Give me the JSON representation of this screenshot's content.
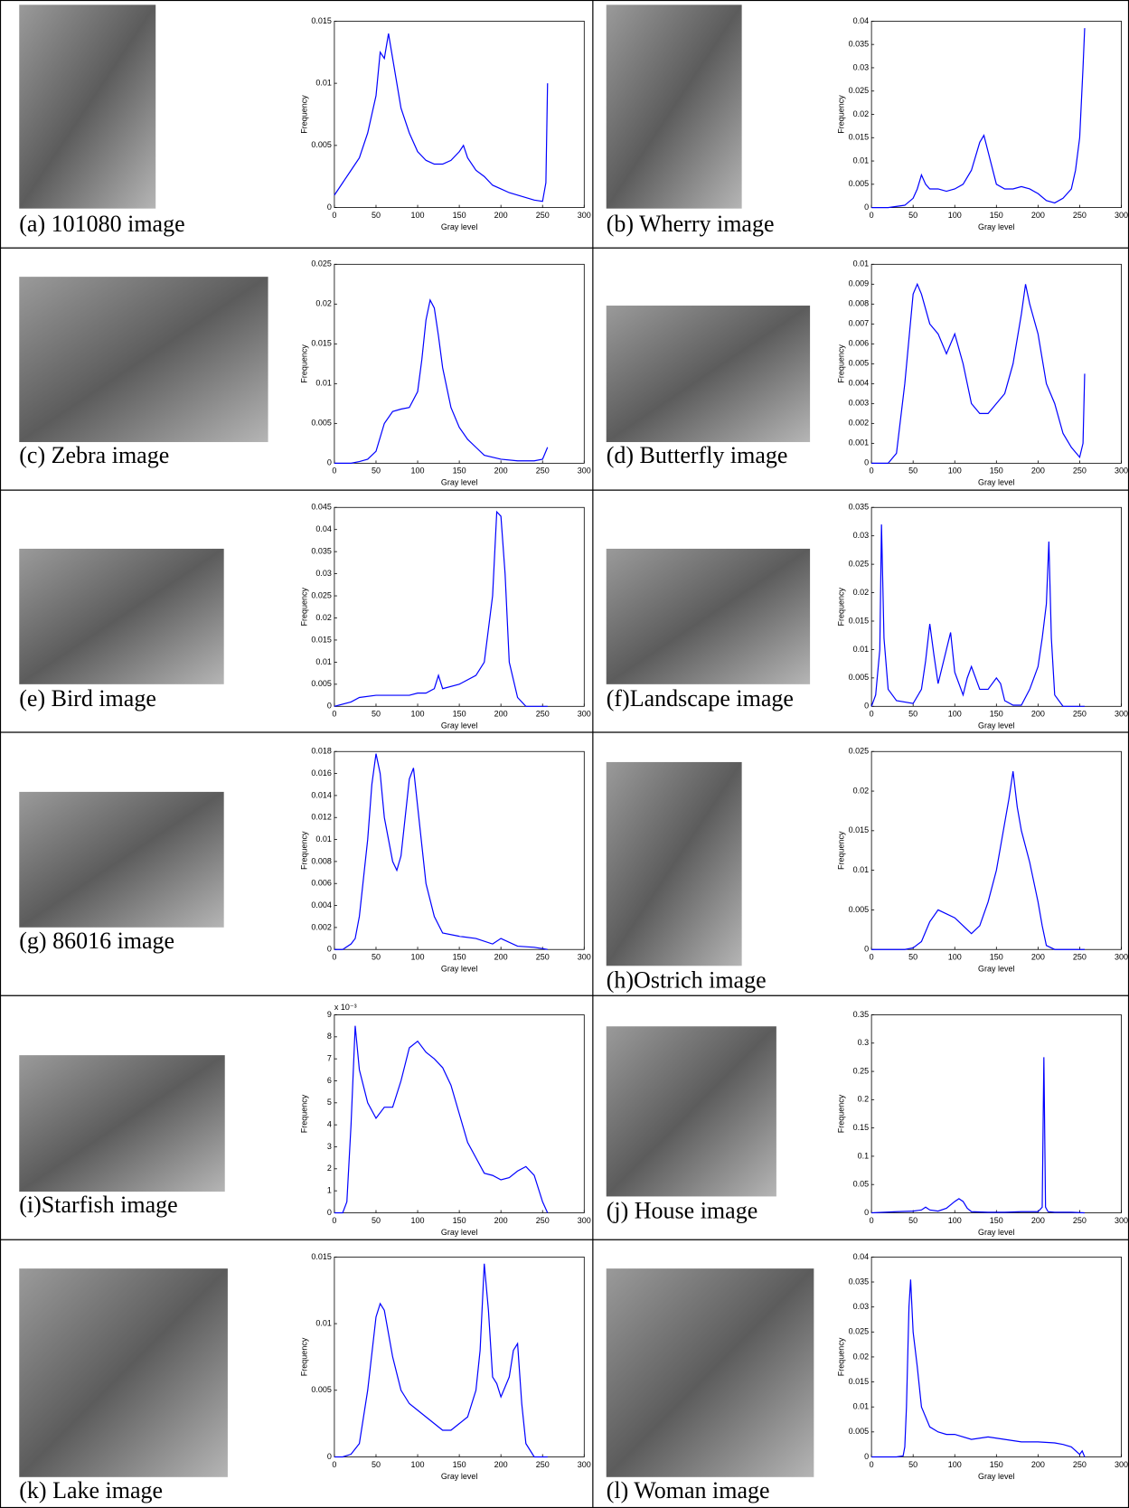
{
  "chart_data": [
    {
      "type": "line",
      "caption": "(a) 101080 image",
      "xlabel": "Gray level",
      "ylabel": "Frequency",
      "xlim": [
        0,
        300
      ],
      "xticks": [
        0,
        50,
        100,
        150,
        200,
        250,
        300
      ],
      "ylim": [
        0,
        0.015
      ],
      "yticks": [
        0,
        0.005,
        0.01,
        0.015
      ],
      "color": "#0000ff",
      "x": [
        0,
        10,
        20,
        30,
        40,
        50,
        55,
        60,
        65,
        70,
        80,
        90,
        100,
        110,
        120,
        130,
        140,
        150,
        155,
        160,
        170,
        180,
        190,
        200,
        210,
        220,
        230,
        240,
        250,
        254,
        256
      ],
      "values": [
        0.001,
        0.002,
        0.003,
        0.004,
        0.006,
        0.009,
        0.0125,
        0.012,
        0.014,
        0.012,
        0.008,
        0.006,
        0.0045,
        0.0038,
        0.0035,
        0.0035,
        0.0038,
        0.0045,
        0.005,
        0.004,
        0.003,
        0.0025,
        0.0018,
        0.0015,
        0.0012,
        0.001,
        0.0008,
        0.0006,
        0.0005,
        0.002,
        0.01
      ]
    },
    {
      "type": "line",
      "caption": "(b) Wherry image",
      "xlabel": "Gray level",
      "ylabel": "Frequency",
      "xlim": [
        0,
        300
      ],
      "xticks": [
        0,
        50,
        100,
        150,
        200,
        250,
        300
      ],
      "ylim": [
        0,
        0.04
      ],
      "yticks": [
        0,
        0.005,
        0.01,
        0.015,
        0.02,
        0.025,
        0.03,
        0.035,
        0.04
      ],
      "color": "#0000ff",
      "x": [
        0,
        20,
        40,
        50,
        55,
        60,
        65,
        70,
        80,
        90,
        100,
        110,
        120,
        130,
        135,
        140,
        150,
        160,
        170,
        180,
        190,
        200,
        210,
        220,
        230,
        240,
        245,
        250,
        254,
        256
      ],
      "values": [
        0,
        0,
        0.0005,
        0.002,
        0.004,
        0.007,
        0.005,
        0.004,
        0.004,
        0.0035,
        0.004,
        0.005,
        0.008,
        0.014,
        0.0155,
        0.012,
        0.005,
        0.004,
        0.004,
        0.0045,
        0.004,
        0.003,
        0.0015,
        0.001,
        0.002,
        0.004,
        0.008,
        0.015,
        0.03,
        0.0385
      ]
    },
    {
      "type": "line",
      "caption": "(c) Zebra image",
      "xlabel": "Gray level",
      "ylabel": "Frequency",
      "xlim": [
        0,
        300
      ],
      "xticks": [
        0,
        50,
        100,
        150,
        200,
        250,
        300
      ],
      "ylim": [
        0,
        0.025
      ],
      "yticks": [
        0,
        0.005,
        0.01,
        0.015,
        0.02,
        0.025
      ],
      "color": "#0000ff",
      "x": [
        0,
        20,
        30,
        40,
        50,
        60,
        70,
        80,
        90,
        100,
        105,
        110,
        115,
        120,
        125,
        130,
        140,
        150,
        160,
        170,
        180,
        200,
        220,
        240,
        250,
        256
      ],
      "values": [
        0,
        0,
        0.0002,
        0.0005,
        0.0015,
        0.005,
        0.0065,
        0.0068,
        0.007,
        0.009,
        0.013,
        0.018,
        0.0205,
        0.0195,
        0.016,
        0.012,
        0.007,
        0.0045,
        0.003,
        0.002,
        0.001,
        0.0005,
        0.0003,
        0.0003,
        0.0005,
        0.002
      ]
    },
    {
      "type": "line",
      "caption": "(d) Butterfly image",
      "xlabel": "Gray level",
      "ylabel": "Frequency",
      "xlim": [
        0,
        300
      ],
      "xticks": [
        0,
        50,
        100,
        150,
        200,
        250,
        300
      ],
      "ylim": [
        0,
        0.01
      ],
      "yticks": [
        0,
        0.001,
        0.002,
        0.003,
        0.004,
        0.005,
        0.006,
        0.007,
        0.008,
        0.009,
        0.01
      ],
      "color": "#0000ff",
      "x": [
        0,
        10,
        20,
        30,
        40,
        50,
        55,
        60,
        70,
        80,
        90,
        100,
        110,
        120,
        130,
        140,
        150,
        160,
        170,
        180,
        185,
        190,
        200,
        210,
        220,
        230,
        240,
        250,
        254,
        256
      ],
      "values": [
        0,
        0,
        0,
        0.0005,
        0.004,
        0.0085,
        0.009,
        0.0085,
        0.007,
        0.0065,
        0.0055,
        0.0065,
        0.005,
        0.003,
        0.0025,
        0.0025,
        0.003,
        0.0035,
        0.005,
        0.0075,
        0.009,
        0.008,
        0.0065,
        0.004,
        0.003,
        0.0015,
        0.0008,
        0.0003,
        0.001,
        0.0045
      ]
    },
    {
      "type": "line",
      "caption": "(e) Bird image",
      "xlabel": "Gray level",
      "ylabel": "Frequency",
      "xlim": [
        0,
        300
      ],
      "xticks": [
        0,
        50,
        100,
        150,
        200,
        250,
        300
      ],
      "ylim": [
        0,
        0.045
      ],
      "yticks": [
        0,
        0.005,
        0.01,
        0.015,
        0.02,
        0.025,
        0.03,
        0.035,
        0.04,
        0.045
      ],
      "color": "#0000ff",
      "x": [
        0,
        20,
        30,
        50,
        70,
        90,
        100,
        110,
        120,
        125,
        130,
        150,
        170,
        180,
        190,
        195,
        200,
        205,
        210,
        220,
        230,
        240,
        256
      ],
      "values": [
        0,
        0.001,
        0.002,
        0.0025,
        0.0025,
        0.0025,
        0.003,
        0.003,
        0.004,
        0.007,
        0.004,
        0.005,
        0.007,
        0.01,
        0.025,
        0.044,
        0.043,
        0.03,
        0.01,
        0.002,
        0,
        0,
        0
      ]
    },
    {
      "type": "line",
      "caption": "(f)Landscape image",
      "xlabel": "Gray level",
      "ylabel": "Frequency",
      "xlim": [
        0,
        300
      ],
      "xticks": [
        0,
        50,
        100,
        150,
        200,
        250,
        300
      ],
      "ylim": [
        0,
        0.035
      ],
      "yticks": [
        0,
        0.005,
        0.01,
        0.015,
        0.02,
        0.025,
        0.03,
        0.035
      ],
      "color": "#0000ff",
      "x": [
        0,
        5,
        10,
        12,
        15,
        20,
        30,
        50,
        60,
        65,
        70,
        75,
        80,
        90,
        95,
        100,
        110,
        115,
        120,
        130,
        140,
        150,
        155,
        160,
        170,
        180,
        190,
        200,
        205,
        210,
        213,
        216,
        220,
        230,
        256
      ],
      "values": [
        0,
        0.002,
        0.01,
        0.032,
        0.012,
        0.003,
        0.001,
        0.0005,
        0.003,
        0.008,
        0.0145,
        0.009,
        0.004,
        0.01,
        0.013,
        0.006,
        0.002,
        0.005,
        0.007,
        0.003,
        0.003,
        0.005,
        0.004,
        0.001,
        0.0002,
        0.0002,
        0.003,
        0.007,
        0.012,
        0.018,
        0.029,
        0.012,
        0.002,
        0,
        0
      ]
    },
    {
      "type": "line",
      "caption": "(g) 86016 image",
      "xlabel": "Gray level",
      "ylabel": "Frequency",
      "xlim": [
        0,
        300
      ],
      "xticks": [
        0,
        50,
        100,
        150,
        200,
        250,
        300
      ],
      "ylim": [
        0,
        0.018
      ],
      "yticks": [
        0,
        0.002,
        0.004,
        0.006,
        0.008,
        0.01,
        0.012,
        0.014,
        0.016,
        0.018
      ],
      "color": "#0000ff",
      "x": [
        0,
        10,
        20,
        25,
        30,
        40,
        45,
        50,
        55,
        60,
        70,
        75,
        80,
        85,
        90,
        95,
        100,
        110,
        120,
        130,
        150,
        170,
        190,
        200,
        220,
        240,
        256
      ],
      "values": [
        0,
        0,
        0.0005,
        0.001,
        0.003,
        0.01,
        0.015,
        0.0178,
        0.016,
        0.012,
        0.008,
        0.0072,
        0.0085,
        0.012,
        0.0155,
        0.0165,
        0.013,
        0.006,
        0.003,
        0.0015,
        0.0012,
        0.001,
        0.0005,
        0.001,
        0.0003,
        0.0002,
        0
      ]
    },
    {
      "type": "line",
      "caption": "(h)Ostrich image",
      "xlabel": "Gray level",
      "ylabel": "Frequency",
      "xlim": [
        0,
        300
      ],
      "xticks": [
        0,
        50,
        100,
        150,
        200,
        250,
        300
      ],
      "ylim": [
        0,
        0.025
      ],
      "yticks": [
        0,
        0.005,
        0.01,
        0.015,
        0.02,
        0.025
      ],
      "color": "#0000ff",
      "x": [
        0,
        40,
        50,
        60,
        70,
        80,
        90,
        100,
        110,
        120,
        130,
        140,
        150,
        160,
        165,
        170,
        175,
        180,
        190,
        200,
        205,
        210,
        220,
        256
      ],
      "values": [
        0,
        0,
        0.0002,
        0.001,
        0.0035,
        0.005,
        0.0045,
        0.004,
        0.003,
        0.002,
        0.003,
        0.006,
        0.01,
        0.016,
        0.019,
        0.0225,
        0.018,
        0.015,
        0.011,
        0.006,
        0.003,
        0.0005,
        0,
        0
      ]
    },
    {
      "type": "line",
      "caption": "(i)Starfish image",
      "xlabel": "Gray level",
      "ylabel": "Frequency",
      "yscale_label": "x 10⁻³",
      "xlim": [
        0,
        300
      ],
      "xticks": [
        0,
        50,
        100,
        150,
        200,
        250,
        300
      ],
      "ylim": [
        0,
        9
      ],
      "yticks": [
        0,
        1,
        2,
        3,
        4,
        5,
        6,
        7,
        8,
        9
      ],
      "color": "#0000ff",
      "x": [
        0,
        10,
        15,
        20,
        25,
        30,
        40,
        50,
        60,
        70,
        80,
        90,
        100,
        110,
        120,
        130,
        140,
        150,
        160,
        170,
        180,
        190,
        200,
        210,
        220,
        230,
        240,
        250,
        256
      ],
      "values": [
        0,
        0,
        0.5,
        4,
        8.5,
        6.5,
        5,
        4.3,
        4.8,
        4.8,
        6,
        7.5,
        7.8,
        7.3,
        7,
        6.6,
        5.8,
        4.5,
        3.2,
        2.5,
        1.8,
        1.7,
        1.5,
        1.6,
        1.9,
        2.1,
        1.7,
        0.5,
        0
      ]
    },
    {
      "type": "line",
      "caption": "(j) House image",
      "xlabel": "Gray level",
      "ylabel": "Frequency",
      "xlim": [
        0,
        300
      ],
      "xticks": [
        0,
        50,
        100,
        150,
        200,
        250,
        300
      ],
      "ylim": [
        0,
        0.35
      ],
      "yticks": [
        0,
        0.05,
        0.1,
        0.15,
        0.2,
        0.25,
        0.3,
        0.35
      ],
      "color": "#0000ff",
      "x": [
        0,
        30,
        50,
        60,
        65,
        70,
        80,
        90,
        100,
        105,
        110,
        115,
        120,
        140,
        160,
        180,
        200,
        205,
        207,
        209,
        212,
        220,
        240,
        256
      ],
      "values": [
        0,
        0.002,
        0.003,
        0.005,
        0.01,
        0.005,
        0.003,
        0.008,
        0.02,
        0.025,
        0.02,
        0.008,
        0.002,
        0.001,
        0.001,
        0.002,
        0.002,
        0.01,
        0.275,
        0.01,
        0.002,
        0.001,
        0.001,
        0
      ]
    },
    {
      "type": "line",
      "caption": "(k) Lake image",
      "xlabel": "Gray level",
      "ylabel": "Frequency",
      "xlim": [
        0,
        300
      ],
      "xticks": [
        0,
        50,
        100,
        150,
        200,
        250,
        300
      ],
      "ylim": [
        0,
        0.015
      ],
      "yticks": [
        0,
        0.005,
        0.01,
        0.015
      ],
      "color": "#0000ff",
      "x": [
        0,
        10,
        20,
        30,
        40,
        50,
        55,
        60,
        70,
        80,
        90,
        100,
        110,
        120,
        130,
        140,
        150,
        160,
        170,
        175,
        180,
        185,
        190,
        195,
        200,
        210,
        215,
        220,
        225,
        230,
        240,
        256
      ],
      "values": [
        0,
        0,
        0.0002,
        0.001,
        0.005,
        0.0105,
        0.0115,
        0.011,
        0.0075,
        0.005,
        0.004,
        0.0035,
        0.003,
        0.0025,
        0.002,
        0.002,
        0.0025,
        0.003,
        0.005,
        0.008,
        0.0145,
        0.011,
        0.006,
        0.0055,
        0.0045,
        0.006,
        0.008,
        0.0085,
        0.004,
        0.001,
        0,
        0
      ]
    },
    {
      "type": "line",
      "caption": "(l) Woman image",
      "xlabel": "Gray level",
      "ylabel": "Frequency",
      "xlim": [
        0,
        300
      ],
      "xticks": [
        0,
        50,
        100,
        150,
        200,
        250,
        300
      ],
      "ylim": [
        0,
        0.04
      ],
      "yticks": [
        0,
        0.005,
        0.01,
        0.015,
        0.02,
        0.025,
        0.03,
        0.035,
        0.04
      ],
      "color": "#0000ff",
      "x": [
        0,
        30,
        38,
        40,
        42,
        45,
        47,
        50,
        55,
        60,
        70,
        80,
        90,
        100,
        120,
        140,
        160,
        180,
        200,
        220,
        230,
        240,
        250,
        253,
        256
      ],
      "values": [
        0,
        0,
        0.0002,
        0.002,
        0.01,
        0.03,
        0.0355,
        0.025,
        0.018,
        0.01,
        0.006,
        0.005,
        0.0045,
        0.0045,
        0.0035,
        0.004,
        0.0035,
        0.003,
        0.003,
        0.0028,
        0.0025,
        0.002,
        0.0005,
        0.0012,
        0
      ]
    }
  ]
}
